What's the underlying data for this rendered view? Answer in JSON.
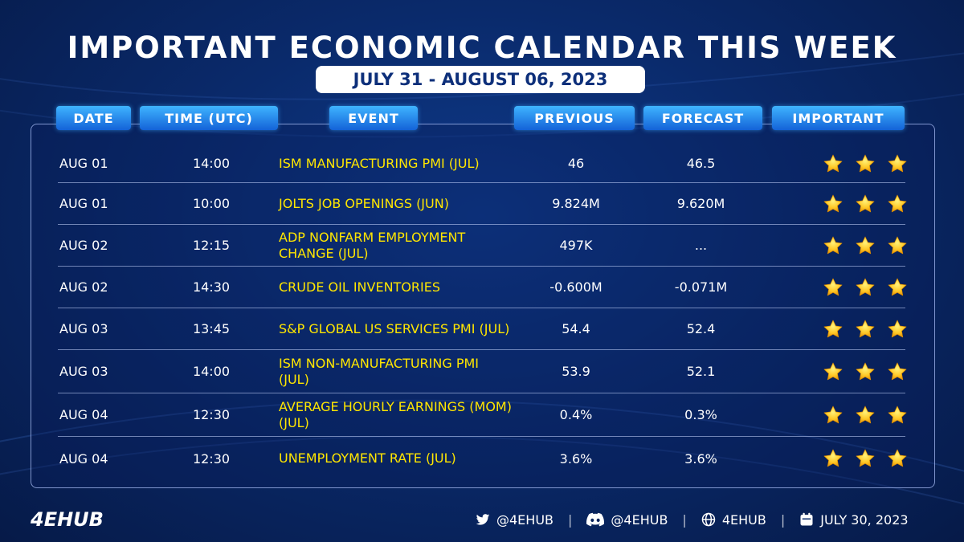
{
  "title": "IMPORTANT ECONOMIC CALENDAR THIS WEEK",
  "date_range": "JULY 31 - AUGUST 06, 2023",
  "columns": {
    "date": "DATE",
    "time": "TIME (UTC)",
    "event": "EVENT",
    "previous": "PREVIOUS",
    "forecast": "FORECAST",
    "important": "IMPORTANT"
  },
  "rows": [
    {
      "date": "AUG 01",
      "time": "14:00",
      "event": "ISM MANUFACTURING PMI (JUL)",
      "previous": "46",
      "forecast": "46.5",
      "stars": 3
    },
    {
      "date": "AUG 01",
      "time": "10:00",
      "event": "JOLTS JOB OPENINGS (JUN)",
      "previous": "9.824M",
      "forecast": "9.620M",
      "stars": 3
    },
    {
      "date": "AUG 02",
      "time": "12:15",
      "event": "ADP NONFARM EMPLOYMENT CHANGE (JUL)",
      "previous": "497K",
      "forecast": "...",
      "stars": 3
    },
    {
      "date": "AUG 02",
      "time": "14:30",
      "event": "CRUDE OIL INVENTORIES",
      "previous": "-0.600M",
      "forecast": "-0.071M",
      "stars": 3
    },
    {
      "date": "AUG 03",
      "time": "13:45",
      "event": "S&P GLOBAL US SERVICES PMI (JUL)",
      "previous": "54.4",
      "forecast": "52.4",
      "stars": 3
    },
    {
      "date": "AUG 03",
      "time": "14:00",
      "event": "ISM NON-MANUFACTURING PMI (JUL)",
      "previous": "53.9",
      "forecast": "52.1",
      "stars": 3
    },
    {
      "date": "AUG 04",
      "time": "12:30",
      "event": "AVERAGE HOURLY EARNINGS (MOM) (JUL)",
      "previous": "0.4%",
      "forecast": "0.3%",
      "stars": 3
    },
    {
      "date": "AUG 04",
      "time": "12:30",
      "event": "UNEMPLOYMENT RATE (JUL)",
      "previous": "3.6%",
      "forecast": "3.6%",
      "stars": 3
    }
  ],
  "footer": {
    "logo": "4EHUB",
    "twitter": "@4EHUB",
    "discord": "@4EHUB",
    "website": "4EHUB",
    "date": "JULY 30, 2023"
  },
  "colors": {
    "accent": "#ffe600",
    "header_blue": "#1e8cf0",
    "background": "#0a2a6b"
  },
  "icons": [
    "twitter-icon",
    "discord-icon",
    "globe-icon",
    "calendar-icon",
    "star-icon"
  ]
}
